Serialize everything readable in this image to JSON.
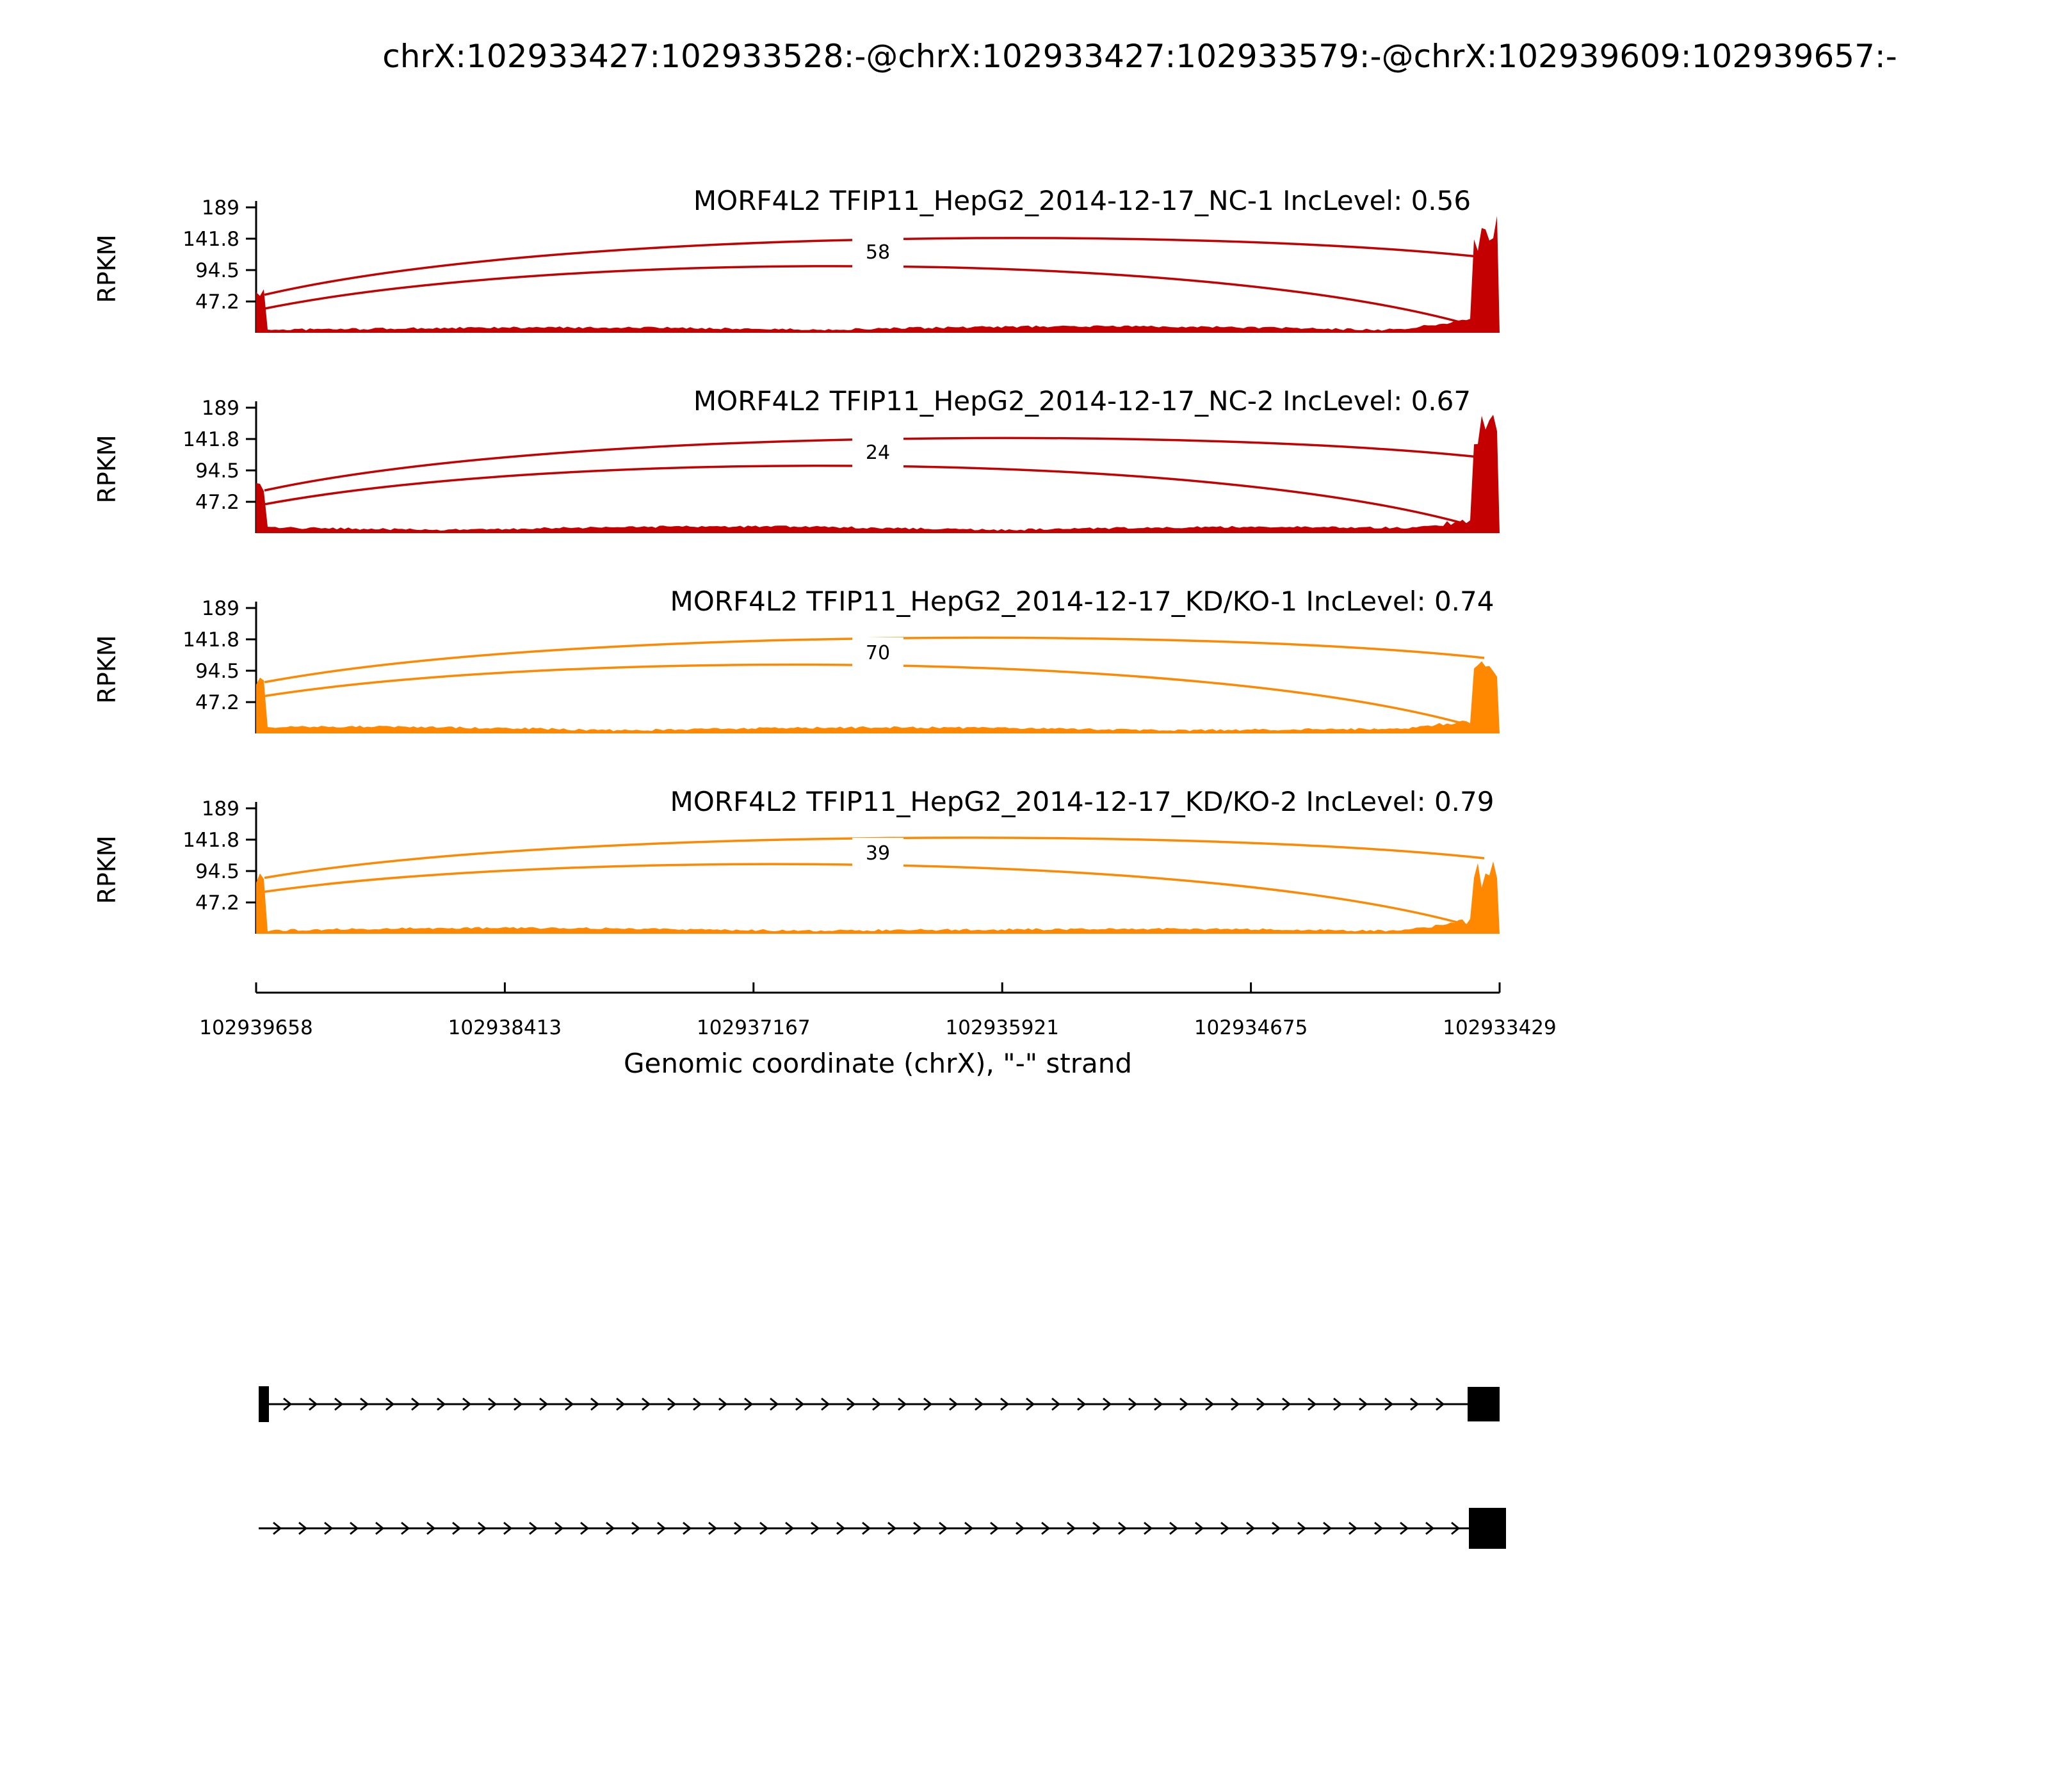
{
  "page": {
    "title": "chrX:102933427:102933528:-@chrX:102933427:102933579:-@chrX:102939609:102939657:-"
  },
  "chart_data": {
    "type": "area",
    "subtype": "sashimi-plot",
    "title": "chrX:102933427:102933528:-@chrX:102933427:102933579:-@chrX:102939609:102939657:-",
    "ylabel": "RPKM",
    "y_ticks": [
      "189",
      "141.8",
      "94.5",
      "47.2"
    ],
    "y_tick_values": [
      189,
      141.8,
      94.5,
      47.2
    ],
    "y_max": 189,
    "x_axis": {
      "label": "Genomic coordinate (chrX), \"-\" strand",
      "ticks": [
        "102939658",
        "102938413",
        "102937167",
        "102935921",
        "102934675",
        "102933429"
      ],
      "strand": "-"
    },
    "tracks": [
      {
        "title": "MORF4L2 TFIP11_HepG2_2014-12-17_NC-1 IncLevel: 0.56",
        "sample": "MORF4L2 TFIP11_HepG2_2014-12-17_NC-1",
        "inc_level": 0.56,
        "junction_count": 58,
        "color": "#C40000",
        "left_spike_rpkm": 65,
        "right_peak_rpkm": 180
      },
      {
        "title": "MORF4L2 TFIP11_HepG2_2014-12-17_NC-2 IncLevel: 0.67",
        "sample": "MORF4L2 TFIP11_HepG2_2014-12-17_NC-2",
        "inc_level": 0.67,
        "junction_count": 24,
        "color": "#C40000",
        "left_spike_rpkm": 72,
        "right_peak_rpkm": 182
      },
      {
        "title": "MORF4L2 TFIP11_HepG2_2014-12-17_KD/KO-1 IncLevel: 0.74",
        "sample": "MORF4L2 TFIP11_HepG2_2014-12-17_KD/KO-1",
        "inc_level": 0.74,
        "junction_count": 70,
        "color": "#FF8800",
        "left_spike_rpkm": 85,
        "right_peak_rpkm": 112
      },
      {
        "title": "MORF4L2 TFIP11_HepG2_2014-12-17_KD/KO-2 IncLevel: 0.79",
        "sample": "MORF4L2 TFIP11_HepG2_2014-12-17_KD/KO-2",
        "inc_level": 0.79,
        "junction_count": 39,
        "color": "#FF8800",
        "left_spike_rpkm": 92,
        "right_peak_rpkm": 125
      }
    ],
    "isoforms": [
      {
        "left_exon": true,
        "right_exon": true
      },
      {
        "left_exon": false,
        "right_exon": true
      }
    ]
  }
}
